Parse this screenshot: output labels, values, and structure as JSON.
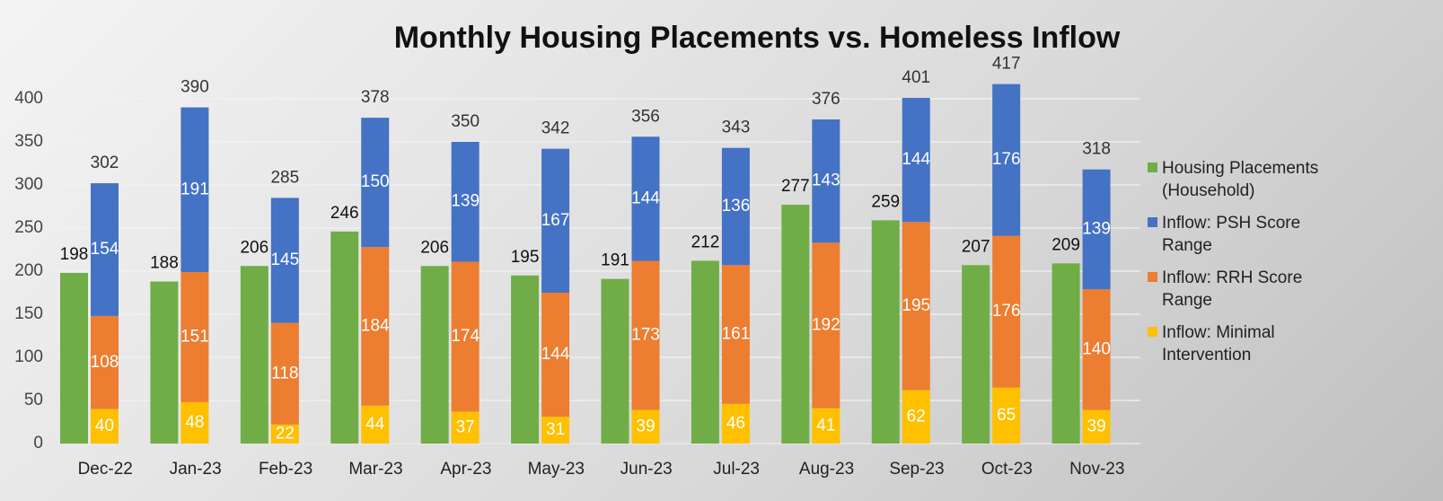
{
  "chart_data": {
    "type": "bar",
    "title": "Monthly Housing Placements vs. Homeless Inflow",
    "categories": [
      "Dec-22",
      "Jan-23",
      "Feb-23",
      "Mar-23",
      "Apr-23",
      "May-23",
      "Jun-23",
      "Jul-23",
      "Aug-23",
      "Sep-23",
      "Oct-23",
      "Nov-23"
    ],
    "series": [
      {
        "name": "Housing Placements (Household)",
        "color": "#70ad47",
        "stacked": false,
        "values": [
          198,
          188,
          206,
          246,
          206,
          195,
          191,
          212,
          277,
          259,
          207,
          209
        ]
      },
      {
        "name": "Inflow: PSH Score Range",
        "color": "#4472c4",
        "stacked": true,
        "values": [
          154,
          191,
          145,
          150,
          139,
          167,
          144,
          136,
          143,
          144,
          176,
          139
        ]
      },
      {
        "name": "Inflow: RRH Score Range",
        "color": "#ed7d31",
        "stacked": true,
        "values": [
          108,
          151,
          118,
          184,
          174,
          144,
          173,
          161,
          192,
          195,
          176,
          140
        ]
      },
      {
        "name": "Inflow: Minimal Intervention",
        "color": "#ffc000",
        "stacked": true,
        "values": [
          40,
          48,
          22,
          44,
          37,
          31,
          39,
          46,
          41,
          62,
          65,
          39
        ]
      }
    ],
    "totals": [
      302,
      390,
      285,
      378,
      350,
      342,
      356,
      343,
      376,
      401,
      417,
      318
    ],
    "ylim": [
      0,
      450
    ],
    "yticks": [
      0,
      50,
      100,
      150,
      200,
      250,
      300,
      350,
      400
    ],
    "grid": true,
    "legend": "right"
  }
}
